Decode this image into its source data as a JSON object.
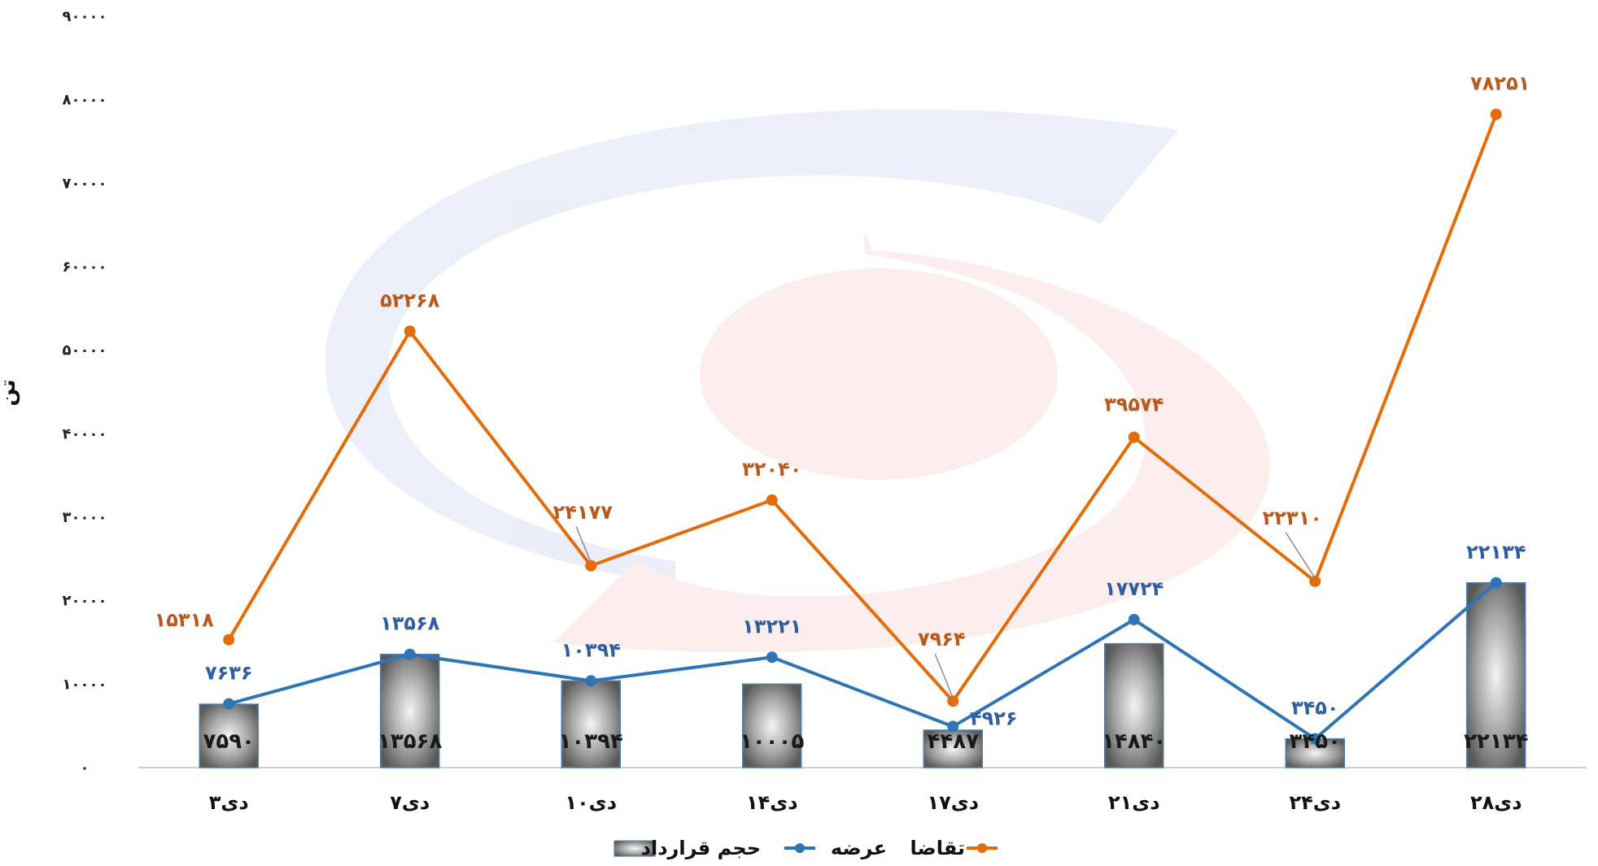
{
  "chart_data": {
    "type": "bar",
    "categories": [
      "۳دی",
      "۷دی",
      "۱۰دی",
      "۱۴دی",
      "۱۷دی",
      "۲۱دی",
      "۲۴دی",
      "۲۸دی"
    ],
    "ylim": [
      0,
      90000
    ],
    "yticks": [
      0,
      10000,
      20000,
      30000,
      40000,
      50000,
      60000,
      70000,
      80000,
      90000
    ],
    "ytick_labels": [
      "۰",
      "۱۰۰۰۰",
      "۲۰۰۰۰",
      "۳۰۰۰۰",
      "۴۰۰۰۰",
      "۵۰۰۰۰",
      "۶۰۰۰۰",
      "۷۰۰۰۰",
      "۸۰۰۰۰",
      "۹۰۰۰۰"
    ],
    "ylabel": "تن",
    "grid": false,
    "legend_position": "bottom-center",
    "series": [
      {
        "name": "حجم قرارداد",
        "type": "bar",
        "values": [
          7590,
          13568,
          10394,
          10005,
          4487,
          14840,
          3450,
          22134
        ],
        "labels": [
          "۷۵۹۰",
          "۱۳۵۶۸",
          "۱۰۳۹۴",
          "۱۰۰۰۵",
          "۴۴۸۷",
          "۱۴۸۴۰",
          "۳۴۵۰",
          "۲۲۱۳۴"
        ]
      },
      {
        "name": "عرضه",
        "type": "line",
        "color": "#2e75b6",
        "values": [
          7636,
          13568,
          10394,
          13221,
          4926,
          17724,
          3450,
          22134
        ],
        "labels": [
          "۷۶۳۶",
          "۱۳۵۶۸",
          "۱۰۳۹۴",
          "۱۳۲۲۱",
          "۴۹۲۶",
          "۱۷۷۲۴",
          "۳۴۵۰",
          "۲۲۱۳۴"
        ]
      },
      {
        "name": "تقاضا",
        "type": "line",
        "color": "#e36c0a",
        "values": [
          15318,
          52268,
          24177,
          32040,
          7964,
          39574,
          22310,
          78251
        ],
        "labels": [
          "۱۵۳۱۸",
          "۵۲۲۶۸",
          "۲۴۱۷۷",
          "۳۲۰۴۰",
          "۷۹۶۴",
          "۳۹۵۷۴",
          "۲۲۳۱۰",
          "۷۸۲۵۱"
        ]
      }
    ]
  },
  "colors": {
    "demand_line": "#e36c0a",
    "supply_line": "#2e75b6",
    "demand_label": "#b85a1e",
    "supply_label": "#2f5f9e",
    "bar_edge": "#4a7fb5",
    "watermark_blue": "#dfe4f6",
    "watermark_red": "#fbe3e3"
  },
  "watermark": "faded blue and red circular logo"
}
